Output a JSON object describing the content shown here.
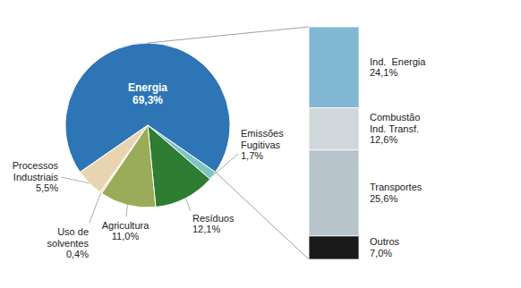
{
  "chart_data": [
    {
      "type": "pie",
      "categories": [
        "Energia",
        "Emissões\nFugitivas",
        "Resíduos",
        "Agricultura",
        "Uso de\nsolventes",
        "Processos\nIndustriais"
      ],
      "values": [
        69.3,
        1.7,
        12.1,
        11.0,
        0.4,
        5.5
      ],
      "value_labels": [
        "69,3%",
        "1,7%",
        "12,1%",
        "11,0%",
        "0,4%",
        "5,5%"
      ],
      "colors": [
        "#2e75b6",
        "#7fc4c4",
        "#2e7d32",
        "#9aab59",
        "#f0dfc8",
        "#e8d5b0"
      ],
      "data_labels": true
    },
    {
      "type": "bar",
      "stacked": true,
      "categories": [
        null
      ],
      "series": [
        {
          "name": "Ind.  Energia",
          "color": "#82b8d4",
          "values": [
            24.1
          ],
          "value_labels": [
            "24,1%"
          ]
        },
        {
          "name": "Combustão\nInd. Transf.",
          "color": "#d0d8dc",
          "values": [
            12.6
          ],
          "value_labels": [
            "12,6%"
          ]
        },
        {
          "name": "Transportes",
          "color": "#b8c4cc",
          "values": [
            25.6
          ],
          "value_labels": [
            "25,6%"
          ]
        },
        {
          "name": "Outros",
          "color": "#1a1a1a",
          "values": [
            7.0
          ],
          "value_labels": [
            "7,0%"
          ]
        }
      ],
      "ylim": [
        0,
        69.3
      ],
      "tick_labels": false,
      "data_labels": true
    }
  ]
}
